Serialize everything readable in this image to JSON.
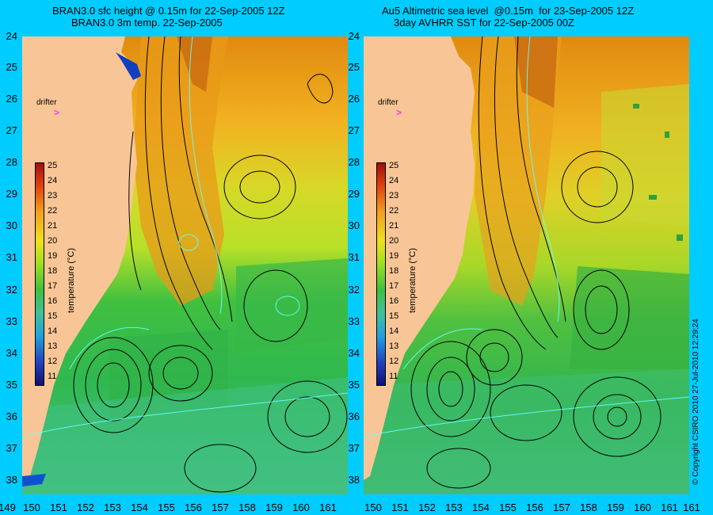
{
  "panels": [
    {
      "title_line1": "BRAN3.0 sfc height @ 0.15m for 22-Sep-2005 12Z",
      "title_line2": "BRAN3.0 3m temp. 22-Sep-2005"
    },
    {
      "title_line1": "Au5 Altimetric sea level  @0.15m  for 23-Sep-2005 12Z",
      "title_line2": "3day AVHRR SST for 22-Sep-2005 00Z"
    }
  ],
  "y_axis_labels": [
    "24",
    "25",
    "26",
    "27",
    "28",
    "29",
    "30",
    "31",
    "32",
    "33",
    "34",
    "35",
    "36",
    "37",
    "38"
  ],
  "x_axis_labels": [
    "149",
    "150",
    "151",
    "152",
    "153",
    "154",
    "155",
    "156",
    "157",
    "158",
    "159",
    "160",
    "161"
  ],
  "drifter_label": "drifter",
  "drifter_arrow": ">",
  "colorbar": {
    "labels": [
      "25",
      "24",
      "23",
      "22",
      "21",
      "20",
      "19",
      "18",
      "17",
      "16",
      "15",
      "14",
      "13",
      "12",
      "11"
    ],
    "title": "temperature (°C)"
  },
  "copyright": "© Copyright CSIRO 2010   27-Jul-2010 12:29:24",
  "colors": {
    "background": "#00ccff",
    "land": "#f8c696",
    "warm": "#e89a10",
    "mid": "#c8e020",
    "cool": "#2cbc4c",
    "contour_black": "#000000",
    "contour_cyan": "#66ffff",
    "drifter": "#ff33ff"
  }
}
